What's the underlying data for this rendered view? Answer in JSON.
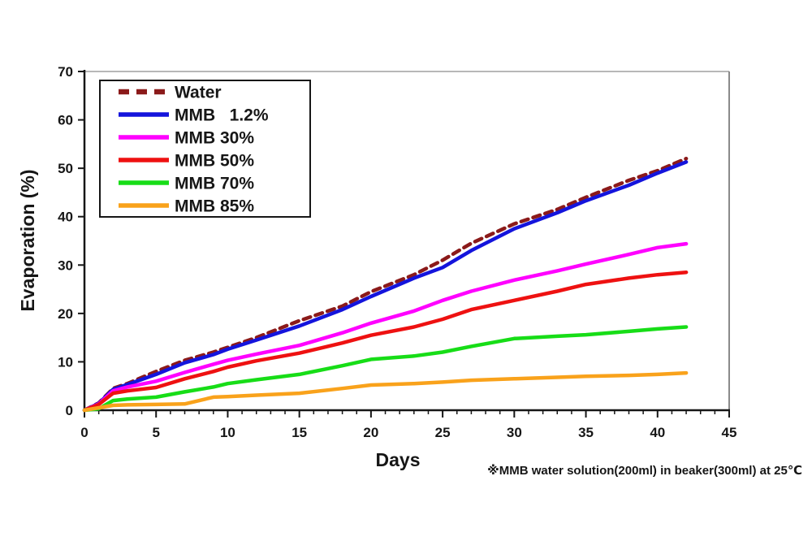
{
  "chart_data": {
    "type": "line",
    "title": "",
    "xlabel": "Days",
    "ylabel": "Evaporation  (%)",
    "footnote": "※MMB water solution(200ml) in beaker(300ml) at 25℃",
    "xlim": [
      0,
      45
    ],
    "ylim": [
      0,
      70
    ],
    "x_major_ticks": [
      0,
      5,
      10,
      15,
      20,
      25,
      30,
      35,
      40,
      45
    ],
    "x_minor_tick_step": 1,
    "y_ticks": [
      0,
      10,
      20,
      30,
      40,
      50,
      60,
      70
    ],
    "grid": false,
    "legend_position": "top-left",
    "axis_color": "#161616",
    "top_border_color": "#b8b8b8",
    "right_border_color": "#8a8a8a",
    "x": [
      0,
      1,
      2,
      3,
      5,
      7,
      9,
      10,
      12,
      15,
      18,
      20,
      23,
      25,
      27,
      30,
      33,
      35,
      38,
      40,
      42
    ],
    "series": [
      {
        "name": "Water",
        "legend_label": "Water",
        "color": "#8B1A1A",
        "line_style": "dashed",
        "values": [
          0,
          1.5,
          4.5,
          5.5,
          8.0,
          10.3,
          12.0,
          13.0,
          15.0,
          18.5,
          21.5,
          24.5,
          28.0,
          31.0,
          34.5,
          38.5,
          41.5,
          44.0,
          47.5,
          49.5,
          52.0
        ]
      },
      {
        "name": "MMB 1.2%",
        "legend_label": "MMB   1.2%",
        "color": "#1414DC",
        "line_style": "solid",
        "values": [
          0,
          1.4,
          4.3,
          5.3,
          7.4,
          9.8,
          11.5,
          12.6,
          14.5,
          17.4,
          20.8,
          23.5,
          27.3,
          29.5,
          33.0,
          37.5,
          40.8,
          43.3,
          46.5,
          49.0,
          51.3
        ]
      },
      {
        "name": "MMB 30%",
        "legend_label": "MMB 30%",
        "color": "#FF00FF",
        "line_style": "solid",
        "values": [
          0,
          1.3,
          4.0,
          4.8,
          6.0,
          7.8,
          9.5,
          10.3,
          11.6,
          13.4,
          16.0,
          18.0,
          20.5,
          22.7,
          24.6,
          26.9,
          28.8,
          30.2,
          32.2,
          33.6,
          34.4
        ]
      },
      {
        "name": "MMB 50%",
        "legend_label": "MMB 50%",
        "color": "#EE1111",
        "line_style": "solid",
        "values": [
          0,
          1.2,
          3.5,
          4.0,
          4.7,
          6.5,
          8.0,
          8.9,
          10.2,
          11.8,
          13.9,
          15.5,
          17.2,
          18.8,
          20.8,
          22.7,
          24.6,
          26.0,
          27.3,
          28.0,
          28.5
        ]
      },
      {
        "name": "MMB 70%",
        "legend_label": "MMB 70%",
        "color": "#17DD17",
        "line_style": "solid",
        "values": [
          0,
          0.3,
          2.0,
          2.3,
          2.7,
          3.8,
          4.8,
          5.5,
          6.3,
          7.4,
          9.2,
          10.5,
          11.2,
          12.0,
          13.2,
          14.8,
          15.3,
          15.6,
          16.3,
          16.8,
          17.2
        ]
      },
      {
        "name": "MMB 85%",
        "legend_label": "MMB 85%",
        "color": "#F9A21B",
        "line_style": "solid",
        "values": [
          0,
          0.5,
          1.0,
          1.1,
          1.2,
          1.3,
          2.7,
          2.8,
          3.1,
          3.5,
          4.5,
          5.2,
          5.5,
          5.8,
          6.2,
          6.5,
          6.8,
          7.0,
          7.2,
          7.4,
          7.7
        ]
      }
    ]
  }
}
